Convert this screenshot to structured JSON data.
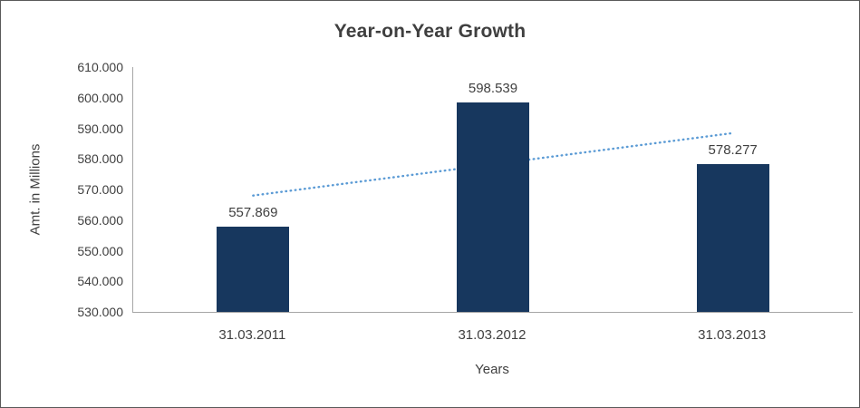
{
  "chart_data": {
    "type": "bar",
    "title": "Year-on-Year Growth",
    "xlabel": "Years",
    "ylabel": "Amt. in Millions",
    "categories": [
      "31.03.2011",
      "31.03.2012",
      "31.03.2013"
    ],
    "values": [
      557.869,
      598.539,
      578.277
    ],
    "data_labels": [
      "557.869",
      "598.539",
      "578.277"
    ],
    "ylim": [
      530,
      610
    ],
    "ytick_step": 10,
    "ytick_labels": [
      "530.000",
      "540.000",
      "550.000",
      "560.000",
      "570.000",
      "580.000",
      "590.000",
      "600.000",
      "610.000"
    ],
    "grid": false,
    "legend": "none",
    "bar_color": "#17375E",
    "trendline": {
      "style": "dotted",
      "color": "#5B9BD5",
      "fit": "linear"
    }
  }
}
